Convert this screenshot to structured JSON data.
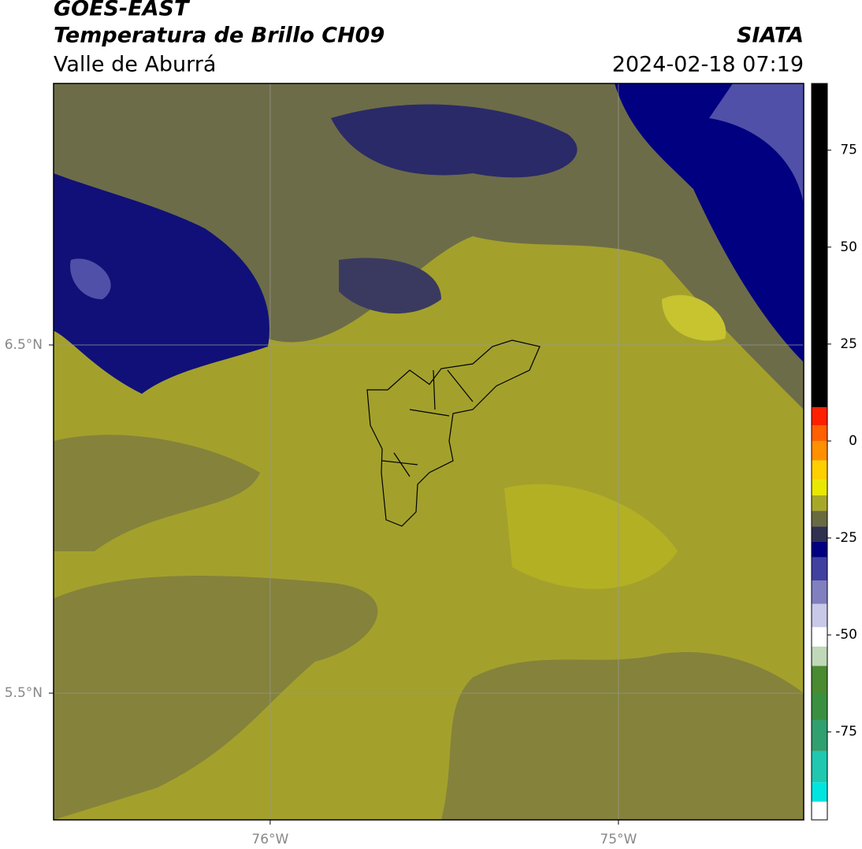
{
  "header": {
    "title": "GOES-EAST",
    "subtitle": "Temperatura de Brillo CH09",
    "region": "Valle de Aburrá",
    "source": "SIATA",
    "datetime": "2024-02-18 07:19"
  },
  "map": {
    "xlim": [
      -76.622,
      -74.468
    ],
    "ylim": [
      5.136,
      7.251
    ],
    "xticks": [
      {
        "value": -76,
        "label": "76°W"
      },
      {
        "value": -75,
        "label": "75°W"
      }
    ],
    "yticks": [
      {
        "value": 6.5,
        "label": "6.5°N"
      },
      {
        "value": 5.5,
        "label": "5.5°N"
      }
    ],
    "grid": true
  },
  "colorbar": {
    "lim": [
      -97.7,
      92.2
    ],
    "ticks": [
      75,
      50,
      25,
      0,
      -25,
      -50,
      -75
    ],
    "bands": [
      {
        "from": -97.7,
        "to": -93,
        "color": "#ffffff"
      },
      {
        "from": -93,
        "to": -88,
        "color": "#00e5e0"
      },
      {
        "from": -88,
        "to": -80,
        "color": "#20c8b0"
      },
      {
        "from": -80,
        "to": -72,
        "color": "#30a070"
      },
      {
        "from": -72,
        "to": -65,
        "color": "#3a9040"
      },
      {
        "from": -65,
        "to": -58,
        "color": "#4a8a30"
      },
      {
        "from": -58,
        "to": -53,
        "color": "#c0d8b8"
      },
      {
        "from": -53,
        "to": -48,
        "color": "#ffffff"
      },
      {
        "from": -48,
        "to": -42,
        "color": "#c8c8e8"
      },
      {
        "from": -42,
        "to": -36,
        "color": "#8080c0"
      },
      {
        "from": -36,
        "to": -30,
        "color": "#4040a0"
      },
      {
        "from": -30,
        "to": -26,
        "color": "#000080"
      },
      {
        "from": -26,
        "to": -22,
        "color": "#303050"
      },
      {
        "from": -22,
        "to": -18,
        "color": "#6a6a40"
      },
      {
        "from": -18,
        "to": -14,
        "color": "#a8a828"
      },
      {
        "from": -14,
        "to": -10,
        "color": "#e8e800"
      },
      {
        "from": -10,
        "to": -5,
        "color": "#ffd000"
      },
      {
        "from": -5,
        "to": 0,
        "color": "#ff9000"
      },
      {
        "from": 0,
        "to": 4,
        "color": "#ff6000"
      },
      {
        "from": 4,
        "to": 8.7,
        "color": "#ff2000"
      },
      {
        "from": 8.7,
        "to": 92.2,
        "color": "#000000"
      }
    ]
  }
}
